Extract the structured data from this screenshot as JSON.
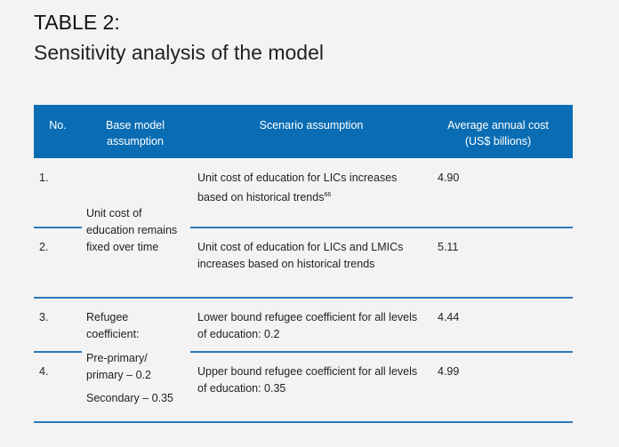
{
  "header": {
    "title": "TABLE 2:",
    "subtitle": "Sensitivity analysis of the model"
  },
  "table": {
    "columns": [
      "No.",
      "Base model assumption",
      "Scenario assumption",
      "Average annual cost (US$ billions)"
    ],
    "rows": [
      {
        "no": "1.",
        "scenario": "Unit cost of education for LICs increases based on historical trends",
        "footnote": "66",
        "cost": "4.90"
      },
      {
        "no": "2.",
        "scenario": "Unit cost of education for LICs and LMICs increases based on historical trends",
        "cost": "5.11"
      },
      {
        "no": "3.",
        "scenario": "Lower bound refugee coefficient for all levels of education: 0.2",
        "cost": "4.44"
      },
      {
        "no": "4.",
        "scenario": "Upper bound refugee coefficient for all levels of education: 0.35",
        "cost": "4.99"
      }
    ],
    "base_groups": [
      {
        "lines": [
          "Unit cost of education remains fixed over time"
        ]
      },
      {
        "lines": [
          "Refugee coefficient:",
          "Pre-primary/ primary – 0.2",
          "Secondary – 0.35"
        ]
      }
    ]
  }
}
